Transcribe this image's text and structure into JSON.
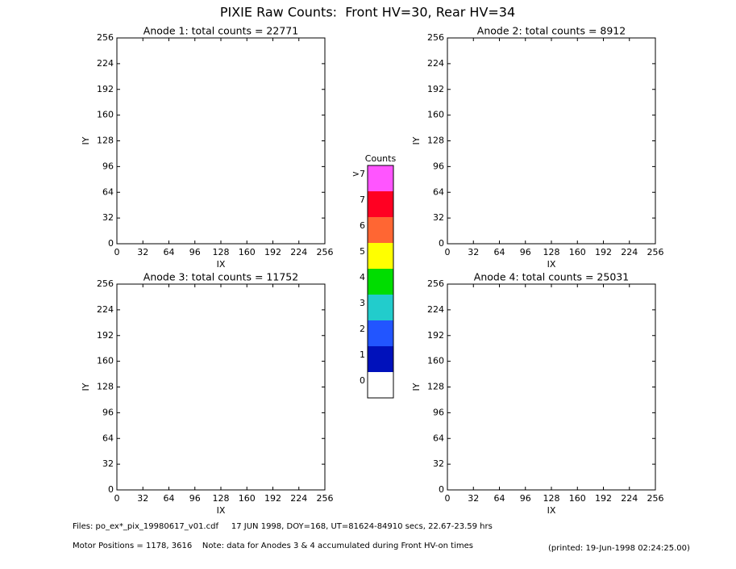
{
  "title": "PIXIE Raw Counts:  Front HV=30, Rear HV=34",
  "chart_data": [
    {
      "type": "heatmap",
      "title": "Anode 1: total counts = 22771",
      "xlabel": "IX",
      "ylabel": "IY",
      "xlim": [
        0,
        256
      ],
      "ylim": [
        0,
        256
      ],
      "xticks": [
        0,
        32,
        64,
        96,
        128,
        160,
        192,
        224,
        256
      ],
      "yticks": [
        0,
        32,
        64,
        96,
        128,
        160,
        192,
        224,
        256
      ]
    },
    {
      "type": "heatmap",
      "title": "Anode 2: total counts = 8912",
      "xlabel": "IX",
      "ylabel": "IY",
      "xlim": [
        0,
        256
      ],
      "ylim": [
        0,
        256
      ],
      "xticks": [
        0,
        32,
        64,
        96,
        128,
        160,
        192,
        224,
        256
      ],
      "yticks": [
        0,
        32,
        64,
        96,
        128,
        160,
        192,
        224,
        256
      ]
    },
    {
      "type": "heatmap",
      "title": "Anode 3: total counts = 11752",
      "xlabel": "IX",
      "ylabel": "IY",
      "xlim": [
        0,
        256
      ],
      "ylim": [
        0,
        256
      ],
      "xticks": [
        0,
        32,
        64,
        96,
        128,
        160,
        192,
        224,
        256
      ],
      "yticks": [
        0,
        32,
        64,
        96,
        128,
        160,
        192,
        224,
        256
      ]
    },
    {
      "type": "heatmap",
      "title": "Anode 4: total counts = 25031",
      "xlabel": "IX",
      "ylabel": "IY",
      "xlim": [
        0,
        256
      ],
      "ylim": [
        0,
        256
      ],
      "xticks": [
        0,
        32,
        64,
        96,
        128,
        160,
        192,
        224,
        256
      ],
      "yticks": [
        0,
        32,
        64,
        96,
        128,
        160,
        192,
        224,
        256
      ]
    }
  ],
  "colorbar": {
    "title": "Counts",
    "labels": [
      ">7",
      7,
      6,
      5,
      4,
      3,
      2,
      1,
      0
    ],
    "colors": [
      "#ff55ff",
      "#ff0022",
      "#ff6633",
      "#ffff00",
      "#00dd00",
      "#22cccc",
      "#2255ff",
      "#0011bb",
      "#ffffff"
    ]
  },
  "footer": {
    "files": "Files: po_ex*_pix_19980617_v01.cdf     17 JUN 1998, DOY=168, UT=81624-84910 secs, 22.67-23.59 hrs",
    "motor": "Motor Positions = 1178, 3616    Note: data for Anodes 3 & 4 accumulated during Front HV-on times",
    "printed": "(printed: 19-Jun-1998 02:24:25.00)"
  }
}
